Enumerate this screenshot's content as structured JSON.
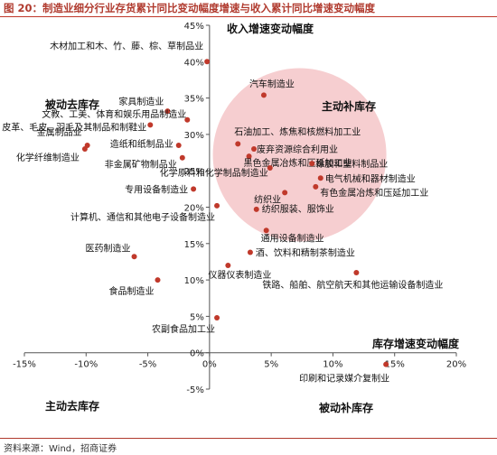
{
  "header": {
    "title": "图 20：制造业细分行业存货累计同比变动幅度增速与收入累计同比增速变动幅度"
  },
  "source": "资料来源：Wind，招商证券",
  "colors": {
    "accent": "#b03a2e",
    "point": "#c0392b",
    "bubble": "#f4c6c8"
  },
  "chart_data": {
    "type": "scatter",
    "xlabel": "库存增速变动幅度",
    "ylabel": "收入增速变动幅度",
    "xlim": [
      -15,
      20
    ],
    "ylim": [
      -5,
      45
    ],
    "xticks": [
      "-15%",
      "-10%",
      "-5%",
      "0%",
      "5%",
      "10%",
      "15%",
      "20%"
    ],
    "yticks": [
      "-5%",
      "0%",
      "5%",
      "10%",
      "15%",
      "20%",
      "25%",
      "30%",
      "35%",
      "40%",
      "45%"
    ],
    "quadrants": {
      "top_left": "被动去库存",
      "top_right": "主动补库存",
      "bottom_left": "主动去库存",
      "bottom_right": "被动补库存"
    },
    "points": [
      {
        "label": "木材加工和木、竹、藤、棕、草制品业",
        "x": -0.2,
        "y": 40.0
      },
      {
        "label": "家具制造业",
        "x": -3.4,
        "y": 33.2
      },
      {
        "label": "皮革、毛皮、羽毛及其制品和制鞋业",
        "x": -4.8,
        "y": 31.3
      },
      {
        "label": "文教、工美、体育和娱乐用品制造业",
        "x": -1.8,
        "y": 32.0
      },
      {
        "label": "金属制品业",
        "x": -9.9,
        "y": 28.5
      },
      {
        "label": "化学纤维制造业",
        "x": -10.1,
        "y": 28.0
      },
      {
        "label": "造纸和纸制品业",
        "x": -2.5,
        "y": 28.5
      },
      {
        "label": "非金属矿物制品业",
        "x": -2.2,
        "y": 26.8
      },
      {
        "label": "汽车制造业",
        "x": 4.4,
        "y": 35.4
      },
      {
        "label": "石油加工、炼焦和核燃料加工业",
        "x": 2.3,
        "y": 28.7
      },
      {
        "label": "废弃资源综合利用业",
        "x": 3.6,
        "y": 28.0
      },
      {
        "label": "黑色金属冶炼和压延加工业",
        "x": 3.2,
        "y": 27.0
      },
      {
        "label": "橡胶和塑料制品业",
        "x": 8.3,
        "y": 26.0
      },
      {
        "label": "化学原料和化学制品制造业",
        "x": 4.9,
        "y": 25.4
      },
      {
        "label": "电气机械和器材制造业",
        "x": 9.0,
        "y": 24.0
      },
      {
        "label": "有色金属冶炼和压延加工业",
        "x": 8.6,
        "y": 22.8
      },
      {
        "label": "专用设备制造业",
        "x": -1.3,
        "y": 22.5
      },
      {
        "label": "纺织业",
        "x": 6.1,
        "y": 22.0
      },
      {
        "label": "计算机、通信和其他电子设备制造业",
        "x": 0.6,
        "y": 20.2
      },
      {
        "label": "纺织服装、服饰业",
        "x": 3.8,
        "y": 19.7
      },
      {
        "label": "通用设备制造业",
        "x": 4.6,
        "y": 16.8
      },
      {
        "label": "医药制造业",
        "x": -6.1,
        "y": 13.2
      },
      {
        "label": "酒、饮料和精制茶制造业",
        "x": 3.3,
        "y": 13.8
      },
      {
        "label": "仪器仪表制造业",
        "x": 1.5,
        "y": 12.0
      },
      {
        "label": "铁路、船舶、航空航天和其他运输设备制造业",
        "x": 11.9,
        "y": 11.0
      },
      {
        "label": "食品制造业",
        "x": -4.2,
        "y": 10.0
      },
      {
        "label": "农副食品加工业",
        "x": 0.6,
        "y": 4.8
      },
      {
        "label": "印刷和记录媒介复制业",
        "x": 14.3,
        "y": -1.6
      }
    ]
  }
}
